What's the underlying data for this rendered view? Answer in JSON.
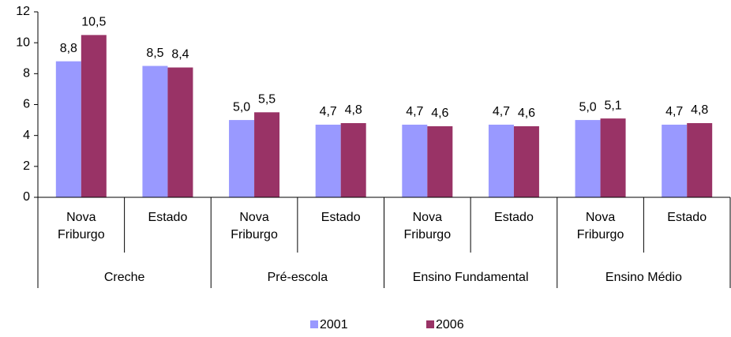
{
  "chart_data": {
    "type": "bar",
    "categories": [
      "Nova Friburgo",
      "Estado",
      "Nova Friburgo",
      "Estado",
      "Nova Friburgo",
      "Estado",
      "Nova Friburgo",
      "Estado"
    ],
    "groups": [
      "Creche",
      "Pré-escola",
      "Ensino Fundamental",
      "Ensino Médio"
    ],
    "series": [
      {
        "name": "2001",
        "color": "#9999ff",
        "values": [
          8.8,
          8.5,
          5.0,
          4.7,
          4.7,
          4.7,
          5.0,
          4.7
        ],
        "value_labels": [
          "8,8",
          "8,5",
          "5,0",
          "4,7",
          "4,7",
          "4,7",
          "5,0",
          "4,7"
        ]
      },
      {
        "name": "2006",
        "color": "#993366",
        "values": [
          10.5,
          8.4,
          5.5,
          4.8,
          4.6,
          4.6,
          5.1,
          4.8
        ],
        "value_labels": [
          "10,5",
          "8,4",
          "5,5",
          "4,8",
          "4,6",
          "4,6",
          "5,1",
          "4,8"
        ]
      }
    ],
    "ylim": [
      0,
      12
    ],
    "yticks": [
      0,
      2,
      4,
      6,
      8,
      10,
      12
    ],
    "legend": "bottom"
  }
}
